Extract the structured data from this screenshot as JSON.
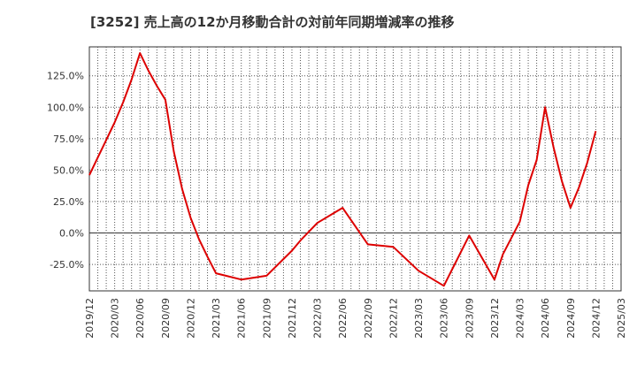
{
  "chart_data": {
    "type": "line",
    "title": "[3252]  売上高の12か月移動合計の対前年同期増減率の推移",
    "xlabel": "",
    "ylabel": "",
    "ylim": [
      -46,
      148
    ],
    "y_ticks": [
      125,
      100,
      75,
      50,
      25,
      0,
      -25
    ],
    "y_tick_labels": [
      "125.0%",
      "100.0%",
      "75.0%",
      "50.0%",
      "25.0%",
      "0.0%",
      "-25.0%"
    ],
    "x_ticks": [
      "2019/12",
      "2020/03",
      "2020/06",
      "2020/09",
      "2020/12",
      "2021/03",
      "2021/06",
      "2021/09",
      "2021/12",
      "2022/03",
      "2022/06",
      "2022/09",
      "2022/12",
      "2023/03",
      "2023/06",
      "2023/09",
      "2023/12",
      "2024/03",
      "2024/06",
      "2024/09",
      "2024/12",
      "2025/03"
    ],
    "grid": true,
    "series": [
      {
        "color": "#dd0000",
        "x": [
          "2019/12",
          "2020/01",
          "2020/02",
          "2020/03",
          "2020/04",
          "2020/05",
          "2020/06",
          "2020/07",
          "2020/08",
          "2020/09",
          "2020/10",
          "2020/11",
          "2020/12",
          "2021/01",
          "2021/02",
          "2021/03",
          "2021/06",
          "2021/09",
          "2021/12",
          "2022/01",
          "2022/03",
          "2022/06",
          "2022/09",
          "2022/12",
          "2023/03",
          "2023/06",
          "2023/09",
          "2023/12",
          "2024/01",
          "2024/03",
          "2024/04",
          "2024/05",
          "2024/06",
          "2024/07",
          "2024/08",
          "2024/09",
          "2024/10",
          "2024/11",
          "2024/12"
        ],
        "values": [
          46,
          60,
          74,
          88,
          104,
          122,
          143,
          129,
          117,
          106,
          65,
          35,
          12,
          -5,
          -19,
          -32,
          -37,
          -34,
          -14,
          -6,
          8,
          20,
          -9,
          -11,
          -30,
          -42,
          -2,
          -37,
          -17,
          9,
          38,
          58,
          100,
          68,
          41,
          20,
          36,
          56,
          81
        ]
      }
    ]
  }
}
